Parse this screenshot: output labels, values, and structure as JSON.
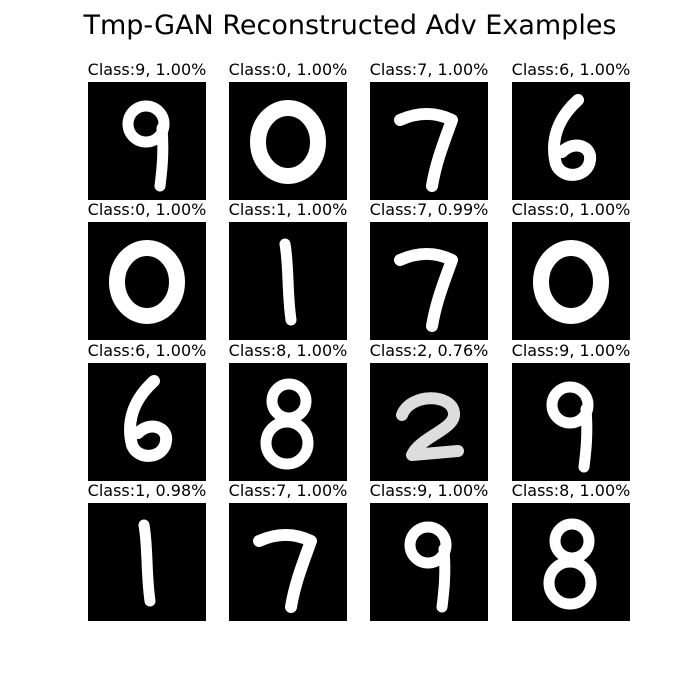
{
  "title": "Tmp-GAN Reconstructed Adv Examples",
  "panels": [
    {
      "label": "Class:9, 1.00%",
      "digit": "9"
    },
    {
      "label": "Class:0, 1.00%",
      "digit": "0"
    },
    {
      "label": "Class:7, 1.00%",
      "digit": "7"
    },
    {
      "label": "Class:6, 1.00%",
      "digit": "6"
    },
    {
      "label": "Class:0, 1.00%",
      "digit": "0"
    },
    {
      "label": "Class:1, 1.00%",
      "digit": "1"
    },
    {
      "label": "Class:7, 0.99%",
      "digit": "7"
    },
    {
      "label": "Class:0, 1.00%",
      "digit": "0"
    },
    {
      "label": "Class:6, 1.00%",
      "digit": "6"
    },
    {
      "label": "Class:8, 1.00%",
      "digit": "8"
    },
    {
      "label": "Class:2, 0.76%",
      "digit": "2"
    },
    {
      "label": "Class:9, 1.00%",
      "digit": "9"
    },
    {
      "label": "Class:1, 0.98%",
      "digit": "1"
    },
    {
      "label": "Class:7, 1.00%",
      "digit": "7"
    },
    {
      "label": "Class:9, 1.00%",
      "digit": "9"
    },
    {
      "label": "Class:8, 1.00%",
      "digit": "8"
    }
  ]
}
